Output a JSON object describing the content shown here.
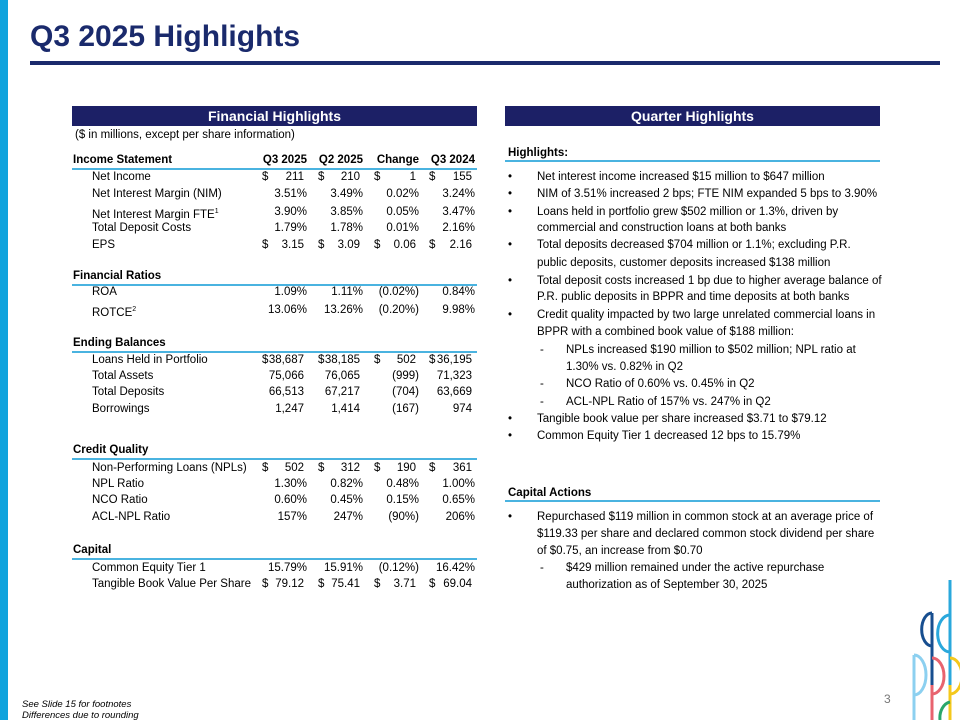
{
  "title": "Q3 2025 Highlights",
  "left": {
    "band": "Financial Highlights",
    "note": "($ in millions, except per share information)",
    "columns": [
      "Q3 2025",
      "Q2 2025",
      "Change",
      "Q3 2024"
    ],
    "sections": [
      {
        "title": "Income Statement",
        "rows": [
          {
            "label": "Net Income",
            "dollar": true,
            "values": [
              "211",
              "210",
              "1",
              "155"
            ]
          },
          {
            "label": "Net Interest Margin (NIM)",
            "values": [
              "3.51%",
              "3.49%",
              "0.02%",
              "3.24%"
            ]
          },
          {
            "label": "Net Interest Margin FTE",
            "sup": "1",
            "values": [
              "3.90%",
              "3.85%",
              "0.05%",
              "3.47%"
            ]
          },
          {
            "label": "Total Deposit Costs",
            "values": [
              "1.79%",
              "1.78%",
              "0.01%",
              "2.16%"
            ]
          },
          {
            "label": "EPS",
            "dollar": true,
            "values": [
              "3.15",
              "3.09",
              "0.06",
              "2.16"
            ]
          }
        ]
      },
      {
        "title": "Financial Ratios",
        "rows": [
          {
            "label": "ROA",
            "values": [
              "1.09%",
              "1.11%",
              "(0.02%)",
              "0.84%"
            ]
          },
          {
            "label": "ROTCE",
            "sup": "2",
            "values": [
              "13.06%",
              "13.26%",
              "(0.20%)",
              "9.98%"
            ]
          }
        ]
      },
      {
        "title": "Ending Balances",
        "rows": [
          {
            "label": "Loans Held in Portfolio",
            "dollar": true,
            "values": [
              "38,687",
              "38,185",
              "502",
              "36,195"
            ]
          },
          {
            "label": "Total Assets",
            "values": [
              "75,066",
              "76,065",
              "(999)",
              "71,323"
            ]
          },
          {
            "label": "Total Deposits",
            "values": [
              "66,513",
              "67,217",
              "(704)",
              "63,669"
            ]
          },
          {
            "label": "Borrowings",
            "values": [
              "1,247",
              "1,414",
              "(167)",
              "974"
            ]
          }
        ]
      },
      {
        "title": "Credit Quality",
        "rows": [
          {
            "label": "Non-Performing Loans (NPLs)",
            "dollar": true,
            "values": [
              "502",
              "312",
              "190",
              "361"
            ]
          },
          {
            "label": "NPL Ratio",
            "values": [
              "1.30%",
              "0.82%",
              "0.48%",
              "1.00%"
            ]
          },
          {
            "label": "NCO Ratio",
            "values": [
              "0.60%",
              "0.45%",
              "0.15%",
              "0.65%"
            ]
          },
          {
            "label": "ACL-NPL Ratio",
            "values": [
              "157%",
              "247%",
              "(90%)",
              "206%"
            ]
          }
        ]
      },
      {
        "title": "Capital",
        "rows": [
          {
            "label": "Common Equity Tier 1",
            "values": [
              "15.79%",
              "15.91%",
              "(0.12%)",
              "16.42%"
            ]
          },
          {
            "label": "Tangible Book Value Per Share",
            "dollar": true,
            "values": [
              "79.12",
              "75.41",
              "3.71",
              "69.04"
            ]
          }
        ]
      }
    ]
  },
  "right": {
    "band": "Quarter Highlights",
    "highlights_header": "Highlights:",
    "highlights": [
      {
        "marker": "•",
        "lines": [
          "Net interest income increased $15 million to $647 million"
        ]
      },
      {
        "marker": "•",
        "lines": [
          "NIM of 3.51% increased 2 bps; FTE NIM expanded 5 bps to 3.90%"
        ]
      },
      {
        "marker": "•",
        "lines": [
          "Loans held in portfolio grew $502 million or 1.3%, driven by",
          "commercial and construction loans at both banks"
        ]
      },
      {
        "marker": "•",
        "lines": [
          "Total deposits decreased $704 million or 1.1%; excluding P.R.",
          "public deposits, customer deposits increased $138 million"
        ]
      },
      {
        "marker": "•",
        "lines": [
          "Total deposit costs increased 1 bp due to higher average balance of",
          "P.R. public deposits in BPPR and time deposits at both banks"
        ]
      },
      {
        "marker": "•",
        "lines": [
          "Credit quality impacted by two large unrelated commercial loans in",
          "BPPR with a combined book value of $188 million:"
        ]
      },
      {
        "marker": "-",
        "sub": true,
        "lines": [
          "NPLs increased $190 million to $502 million; NPL ratio at",
          "1.30% vs. 0.82% in Q2"
        ]
      },
      {
        "marker": "-",
        "sub": true,
        "lines": [
          "NCO Ratio of 0.60% vs. 0.45% in Q2"
        ]
      },
      {
        "marker": "-",
        "sub": true,
        "lines": [
          "ACL-NPL Ratio of 157% vs. 247% in Q2"
        ]
      },
      {
        "marker": "•",
        "lines": [
          "Tangible book value per share increased $3.71 to $79.12"
        ]
      },
      {
        "marker": "•",
        "lines": [
          "Common Equity Tier 1 decreased 12 bps to 15.79%"
        ]
      }
    ],
    "capital_header": "Capital Actions",
    "capital": [
      {
        "marker": "•",
        "lines": [
          "Repurchased $119 million in common stock at an average price of",
          "$119.33 per share and declared common stock dividend per share",
          "of $0.75, an increase from $0.70"
        ]
      },
      {
        "marker": "-",
        "sub": true,
        "lines": [
          "$429 million remained under the active repurchase",
          "authorization as of September 30, 2025"
        ]
      }
    ]
  },
  "page_number": "3",
  "footnotes": [
    "See Slide 15 for footnotes",
    "Differences due to rounding"
  ],
  "colors": {
    "navy": "#1c2066",
    "accent": "#0fa3dd",
    "rule": "#4ab3e0"
  }
}
